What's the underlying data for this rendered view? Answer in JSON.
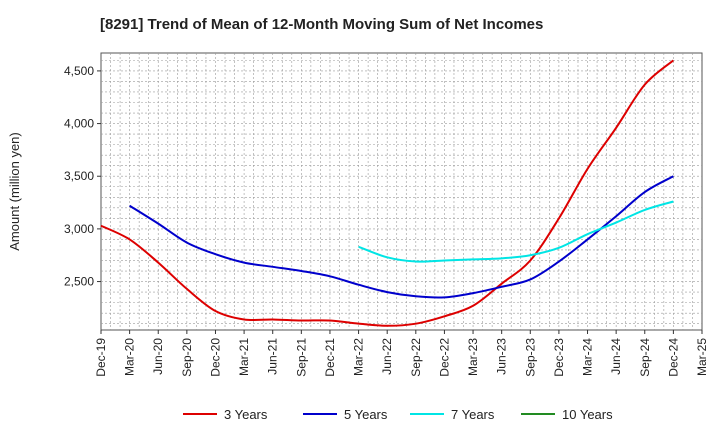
{
  "chart_data": {
    "type": "line",
    "title": "[8291]  Trend of Mean of 12-Month Moving Sum of Net Incomes",
    "xlabel": "",
    "ylabel": "Amount (million yen)",
    "x_ticks": [
      "Dec-19",
      "Mar-20",
      "Jun-20",
      "Sep-20",
      "Dec-20",
      "Mar-21",
      "Jun-21",
      "Sep-21",
      "Dec-21",
      "Mar-22",
      "Jun-22",
      "Sep-22",
      "Dec-22",
      "Mar-23",
      "Jun-23",
      "Sep-23",
      "Dec-23",
      "Mar-24",
      "Jun-24",
      "Sep-24",
      "Dec-24",
      "Mar-25"
    ],
    "y_ticks": [
      2500,
      3000,
      3500,
      4000,
      4500
    ],
    "y_tick_labels": [
      "2,500",
      "3,000",
      "3,500",
      "4,000",
      "4,500"
    ],
    "ylim": [
      2040,
      4670
    ],
    "grid": true,
    "legend_position": "bottom",
    "series": [
      {
        "name": "3 Years",
        "color": "#dd0000",
        "x": [
          "Dec-19",
          "Mar-20",
          "Jun-20",
          "Sep-20",
          "Dec-20",
          "Mar-21",
          "Jun-21",
          "Sep-21",
          "Dec-21",
          "Mar-22",
          "Jun-22",
          "Sep-22",
          "Dec-22",
          "Mar-23",
          "Jun-23",
          "Sep-23",
          "Dec-23",
          "Mar-24",
          "Jun-24",
          "Sep-24",
          "Dec-24"
        ],
        "values": [
          3030,
          2900,
          2680,
          2430,
          2220,
          2140,
          2140,
          2130,
          2130,
          2100,
          2080,
          2100,
          2170,
          2270,
          2480,
          2700,
          3100,
          3570,
          3960,
          4370,
          4600
        ]
      },
      {
        "name": "5 Years",
        "color": "#0000cc",
        "x": [
          "Mar-20",
          "Jun-20",
          "Sep-20",
          "Dec-20",
          "Mar-21",
          "Jun-21",
          "Sep-21",
          "Dec-21",
          "Mar-22",
          "Jun-22",
          "Sep-22",
          "Dec-22",
          "Mar-23",
          "Jun-23",
          "Sep-23",
          "Dec-23",
          "Mar-24",
          "Jun-24",
          "Sep-24",
          "Dec-24"
        ],
        "values": [
          3220,
          3050,
          2870,
          2760,
          2680,
          2640,
          2600,
          2550,
          2470,
          2400,
          2360,
          2350,
          2390,
          2450,
          2520,
          2690,
          2900,
          3120,
          3350,
          3500
        ]
      },
      {
        "name": "7 Years",
        "color": "#00e5e5",
        "x": [
          "Mar-22",
          "Jun-22",
          "Sep-22",
          "Dec-22",
          "Mar-23",
          "Jun-23",
          "Sep-23",
          "Dec-23",
          "Mar-24",
          "Jun-24",
          "Sep-24",
          "Dec-24"
        ],
        "values": [
          2830,
          2730,
          2690,
          2700,
          2710,
          2720,
          2750,
          2820,
          2950,
          3060,
          3180,
          3260
        ]
      },
      {
        "name": "10 Years",
        "color": "#228b22",
        "x": [],
        "values": []
      }
    ]
  }
}
